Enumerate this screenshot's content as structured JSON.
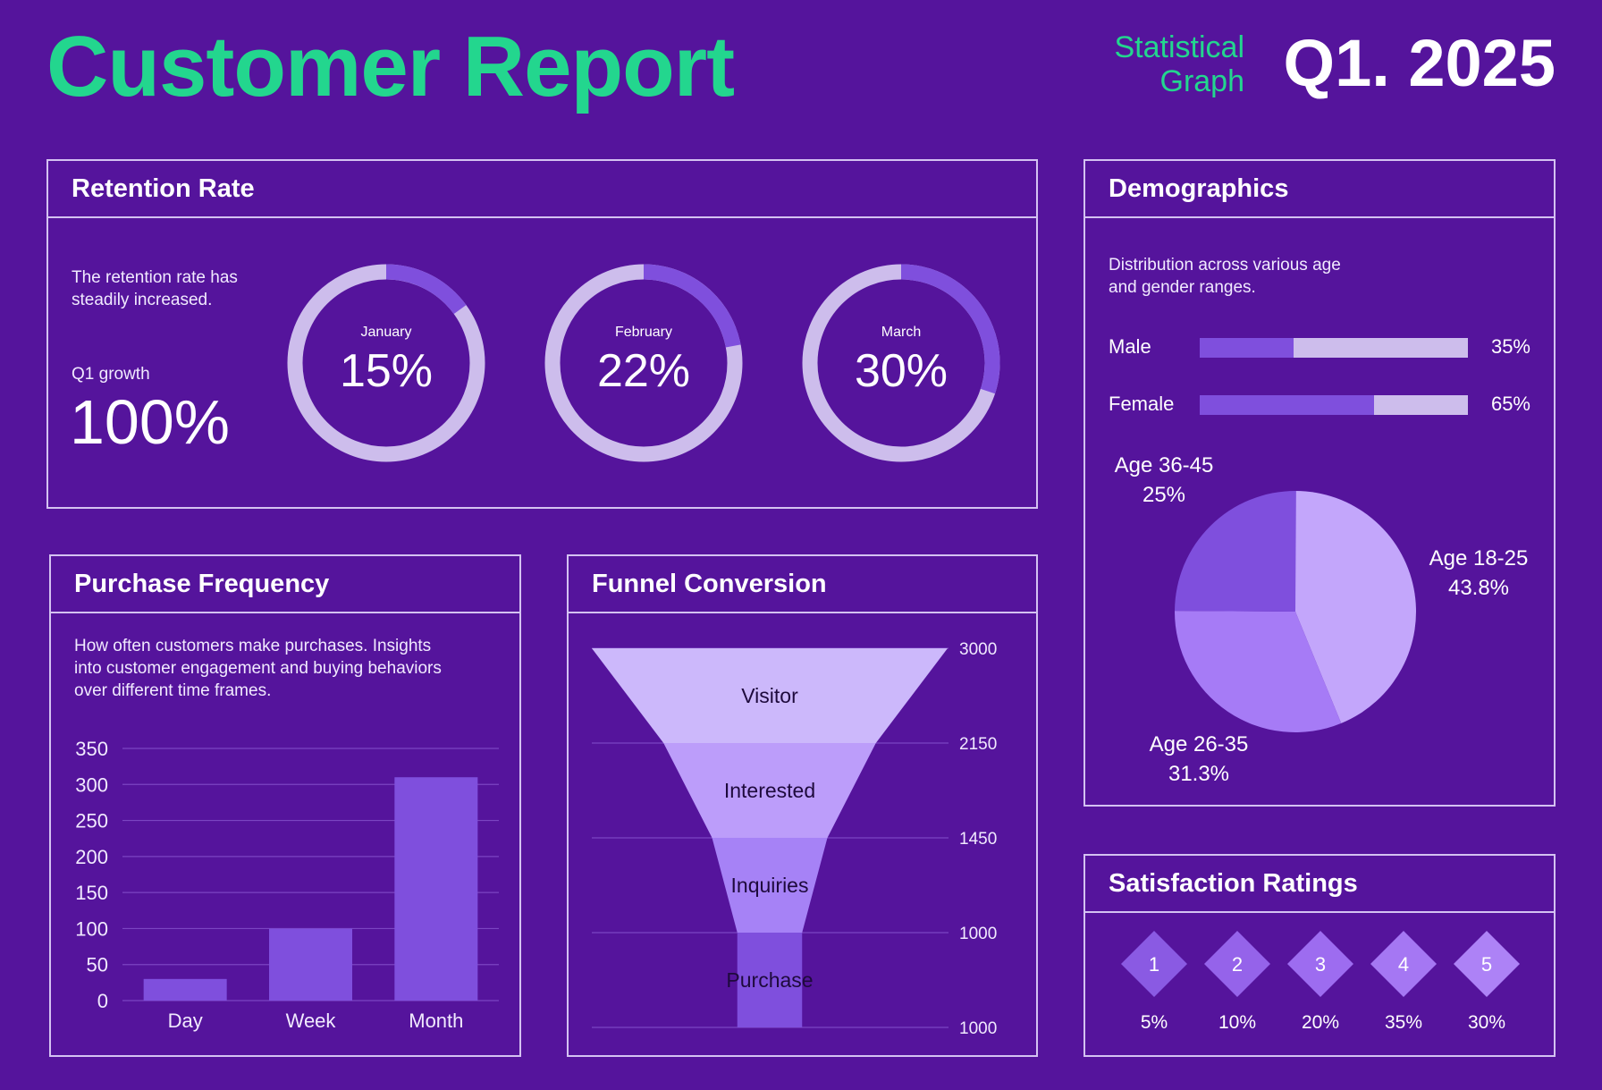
{
  "header": {
    "title": "Customer Report",
    "subtitle_line1": "Statistical",
    "subtitle_line2": "Graph",
    "period": "Q1. 2025"
  },
  "colors": {
    "background": "#55149c",
    "accent_green": "#23d68e",
    "bar_purple": "#7f4fdd",
    "track_light": "#cdbdec",
    "ring_fill": "#7f4fdd"
  },
  "retention": {
    "title": "Retention Rate",
    "description_line1": "The retention rate has",
    "description_line2": "steadily increased.",
    "growth_label": "Q1 growth",
    "growth_value": "100%",
    "months": [
      {
        "label": "January",
        "value_text": "15%",
        "value": 15
      },
      {
        "label": "February",
        "value_text": "22%",
        "value": 22
      },
      {
        "label": "March",
        "value_text": "30%",
        "value": 30
      }
    ]
  },
  "demographics": {
    "title": "Demographics",
    "description_line1": "Distribution across various age",
    "description_line2": "and gender ranges.",
    "gender": [
      {
        "label": "Male",
        "value_text": "35%",
        "value": 35
      },
      {
        "label": "Female",
        "value_text": "65%",
        "value": 65
      }
    ],
    "pie": [
      {
        "label": "Age 18-25",
        "value_text": "43.8%",
        "value": 43.8,
        "color": "#c3a6fb"
      },
      {
        "label": "Age 26-35",
        "value_text": "31.3%",
        "value": 31.3,
        "color": "#a67bf6"
      },
      {
        "label": "Age 36-45",
        "value_text": "25%",
        "value": 25,
        "color": "#7f4fdd"
      }
    ]
  },
  "purchase": {
    "title": "Purchase Frequency",
    "description_line1": "How often customers make purchases. Insights",
    "description_line2": "into customer engagement and buying behaviors",
    "description_line3": "over different time frames."
  },
  "funnel": {
    "title": "Funnel Conversion"
  },
  "satisfaction": {
    "title": "Satisfaction Ratings",
    "ratings": [
      {
        "score": "1",
        "percent": "5%",
        "color": "#8a5ae3"
      },
      {
        "score": "2",
        "percent": "10%",
        "color": "#9563ea"
      },
      {
        "score": "3",
        "percent": "20%",
        "color": "#9d6cf0"
      },
      {
        "score": "4",
        "percent": "35%",
        "color": "#a577f3"
      },
      {
        "score": "5",
        "percent": "30%",
        "color": "#ad82f6"
      }
    ]
  },
  "chart_data": [
    {
      "type": "bar",
      "title": "Purchase Frequency",
      "categories": [
        "Day",
        "Week",
        "Month"
      ],
      "values": [
        30,
        100,
        310
      ],
      "ylim": [
        0,
        350
      ],
      "yticks": [
        0,
        50,
        100,
        150,
        200,
        250,
        300,
        350
      ],
      "grid": true
    },
    {
      "type": "funnel",
      "title": "Funnel Conversion",
      "categories": [
        "Visitor",
        "Interested",
        "Inquiries",
        "Purchase"
      ],
      "values": [
        3000,
        2150,
        1450,
        1000
      ],
      "tick_labels": [
        "3000",
        "2150",
        "1450",
        "1000",
        "1000"
      ],
      "colors": [
        "#ccb8fb",
        "#bc9dfa",
        "#a682f6",
        "#7f4fdd"
      ]
    }
  ]
}
